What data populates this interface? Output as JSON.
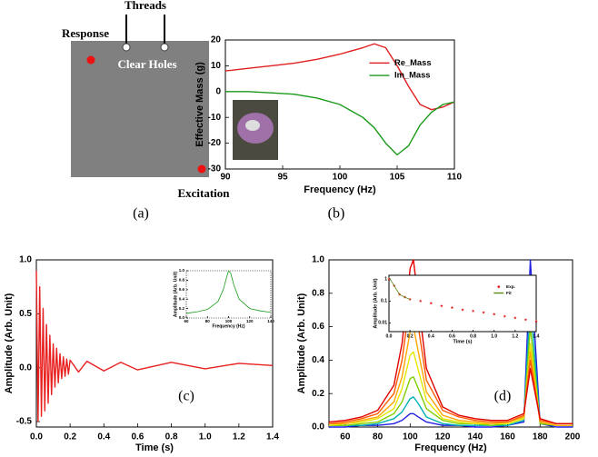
{
  "diagram": {
    "threads": "Threads",
    "response": "Response",
    "clear_holes": "Clear Holes",
    "excitation": "Excitation",
    "caption": "(a)"
  },
  "chart_data": [
    {
      "type": "line",
      "caption": "(b)",
      "xlabel": "Frequency (Hz)",
      "ylabel": "Effective Mass (g)",
      "x": [
        90,
        92,
        94,
        96,
        98,
        100,
        102,
        103,
        104,
        105,
        106,
        107,
        108,
        109,
        110
      ],
      "series": [
        {
          "name": "Re_Mass",
          "color": "#e02020",
          "values": [
            8,
            9,
            10,
            11,
            12.5,
            14.5,
            17,
            18.5,
            17,
            10,
            2,
            -5,
            -7,
            -6,
            -4
          ]
        },
        {
          "name": "Im_Mass",
          "color": "#1a9a1a",
          "values": [
            0,
            0,
            -0.5,
            -1,
            -2.5,
            -5,
            -10,
            -14,
            -20,
            -24.5,
            -21,
            -13,
            -8,
            -5,
            -4
          ]
        }
      ],
      "xlim": [
        90,
        110
      ],
      "ylim": [
        -30,
        20
      ],
      "xticks": [
        90,
        95,
        100,
        105,
        110
      ],
      "yticks": [
        -30,
        -20,
        -10,
        0,
        10,
        20
      ],
      "legend": "upper right"
    },
    {
      "type": "line",
      "caption": "(c)",
      "xlabel": "Time (s)",
      "ylabel": "Amplitude (Arb. Unit)",
      "x": [
        0,
        0.01,
        0.02,
        0.03,
        0.04,
        0.05,
        0.06,
        0.07,
        0.08,
        0.09,
        0.1,
        0.11,
        0.12,
        0.13,
        0.14,
        0.15,
        0.16,
        0.17,
        0.18,
        0.19,
        0.2,
        0.25,
        0.3,
        0.4,
        0.5,
        0.6,
        0.8,
        1.0,
        1.2,
        1.4
      ],
      "series": [
        {
          "color": "#e82020",
          "values": [
            0.9,
            -0.5,
            0.75,
            -0.45,
            0.55,
            -0.4,
            0.4,
            -0.33,
            0.3,
            -0.25,
            0.22,
            -0.18,
            0.18,
            -0.14,
            0.13,
            -0.1,
            0.1,
            -0.08,
            0.08,
            -0.06,
            0.07,
            -0.04,
            0.06,
            -0.03,
            0.05,
            -0.02,
            0.05,
            -0.01,
            0.04,
            0.02
          ]
        }
      ],
      "xlim": [
        0,
        1.4
      ],
      "ylim": [
        -0.55,
        1.0
      ],
      "xticks": [
        {
          "value": 0,
          "label": "0.0"
        },
        0.2,
        0.4,
        0.6,
        0.8,
        {
          "value": 1,
          "label": "1.0"
        },
        1.2,
        1.4
      ],
      "yticks": [
        -0.5,
        {
          "value": 0,
          "label": "0.0"
        },
        0.5,
        {
          "value": 1,
          "label": "1.0"
        }
      ]
    },
    {
      "type": "line",
      "xlabel": "Frequency (Hz)",
      "ylabel": "Amplitude (Arb. Unit)",
      "x": [
        60,
        70,
        80,
        90,
        95,
        98,
        100,
        102,
        105,
        110,
        120,
        130,
        140
      ],
      "series": [
        {
          "color": "#1a9a1a",
          "values": [
            0.1,
            0.13,
            0.18,
            0.35,
            0.6,
            0.85,
            1.0,
            0.95,
            0.7,
            0.4,
            0.2,
            0.15,
            0.12
          ]
        }
      ],
      "xlim": [
        60,
        140
      ],
      "ylim": [
        0,
        1.0
      ],
      "xticks": [
        60,
        80,
        100,
        120,
        140
      ],
      "yticks": [
        {
          "value": 0,
          "label": "0.0"
        },
        0.2,
        0.4,
        0.6,
        0.8,
        {
          "value": 1,
          "label": "1.0"
        }
      ]
    },
    {
      "type": "line",
      "caption": "(d)",
      "xlabel": "Frequency (Hz)",
      "ylabel": "Amplitude (Arb. Unit)",
      "x": [
        50,
        60,
        70,
        80,
        90,
        95,
        100,
        102,
        105,
        110,
        120,
        130,
        140,
        150,
        160,
        170,
        174,
        180,
        190,
        200
      ],
      "series": [
        {
          "color": "#2020e0",
          "values": [
            0,
            0,
            0.01,
            0.01,
            0.02,
            0.04,
            0.08,
            0.08,
            0.06,
            0.03,
            0.01,
            0.01,
            0,
            0,
            0.01,
            0.03,
            1.0,
            0.02,
            0,
            0
          ]
        },
        {
          "color": "#00b0b0",
          "values": [
            0.01,
            0.01,
            0.01,
            0.02,
            0.05,
            0.09,
            0.17,
            0.18,
            0.14,
            0.06,
            0.02,
            0.01,
            0.01,
            0.01,
            0.01,
            0.04,
            0.75,
            0.02,
            0.01,
            0.01
          ]
        },
        {
          "color": "#80d000",
          "values": [
            0.01,
            0.01,
            0.02,
            0.03,
            0.08,
            0.15,
            0.29,
            0.3,
            0.23,
            0.11,
            0.04,
            0.02,
            0.02,
            0.01,
            0.02,
            0.05,
            0.6,
            0.02,
            0.01,
            0.01
          ]
        },
        {
          "color": "#e6e600",
          "values": [
            0.01,
            0.02,
            0.03,
            0.05,
            0.11,
            0.23,
            0.43,
            0.45,
            0.34,
            0.16,
            0.05,
            0.03,
            0.02,
            0.02,
            0.02,
            0.05,
            0.5,
            0.03,
            0.01,
            0.01
          ]
        },
        {
          "color": "#ffa500",
          "values": [
            0.02,
            0.02,
            0.04,
            0.06,
            0.15,
            0.3,
            0.57,
            0.6,
            0.45,
            0.21,
            0.07,
            0.04,
            0.03,
            0.02,
            0.03,
            0.06,
            0.45,
            0.03,
            0.01,
            0.01
          ]
        },
        {
          "color": "#ff5a00",
          "values": [
            0.02,
            0.03,
            0.05,
            0.08,
            0.2,
            0.4,
            0.76,
            0.8,
            0.6,
            0.28,
            0.1,
            0.06,
            0.04,
            0.03,
            0.03,
            0.07,
            0.4,
            0.04,
            0.02,
            0.02
          ]
        },
        {
          "color": "#e00000",
          "values": [
            0.03,
            0.04,
            0.06,
            0.1,
            0.25,
            0.5,
            0.95,
            1.0,
            0.75,
            0.35,
            0.12,
            0.07,
            0.05,
            0.04,
            0.04,
            0.08,
            0.35,
            0.05,
            0.02,
            0.02
          ]
        }
      ],
      "xlim": [
        50,
        200
      ],
      "ylim": [
        0,
        1.0
      ],
      "xticks": [
        60,
        80,
        100,
        120,
        140,
        160,
        180,
        200
      ],
      "yticks": [
        {
          "value": 0,
          "label": "0.0"
        },
        0.2,
        0.4,
        0.6,
        0.8,
        {
          "value": 1,
          "label": "1.0"
        }
      ]
    },
    {
      "type": "line",
      "xlabel": "Time (s)",
      "ylabel": "Amplitude (Arb. Unit)",
      "log_y": true,
      "x": [
        0,
        0.05,
        0.1,
        0.15,
        0.2,
        0.3,
        0.4,
        0.5,
        0.6,
        0.7,
        0.8,
        0.9,
        1.0,
        1.1,
        1.2,
        1.3,
        1.4
      ],
      "series": [
        {
          "name": "Exp.",
          "color": "#e02020",
          "marker": "star",
          "values": [
            1,
            0.5,
            0.2,
            0.15,
            0.12,
            0.1,
            0.08,
            0.06,
            0.05,
            0.04,
            0.035,
            0.03,
            0.025,
            0.02,
            0.017,
            0.014,
            0.012
          ]
        },
        {
          "name": "Fit",
          "color": "#5a8a10",
          "values": [
            1.2,
            0.5,
            0.2,
            0.15,
            0.12,
            null,
            null,
            null,
            null,
            null,
            null,
            null,
            null,
            null,
            null,
            null,
            null
          ]
        }
      ],
      "xlim": [
        0,
        1.4
      ],
      "ylim": [
        0.004,
        1.5
      ],
      "xticks": [
        {
          "value": 0,
          "label": "0.0"
        },
        0.2,
        0.4,
        0.6,
        0.8,
        {
          "value": 1,
          "label": "1.0"
        },
        1.2,
        1.4
      ],
      "yticks": [
        0.01,
        0.1,
        1
      ],
      "legend": "upper right"
    }
  ]
}
